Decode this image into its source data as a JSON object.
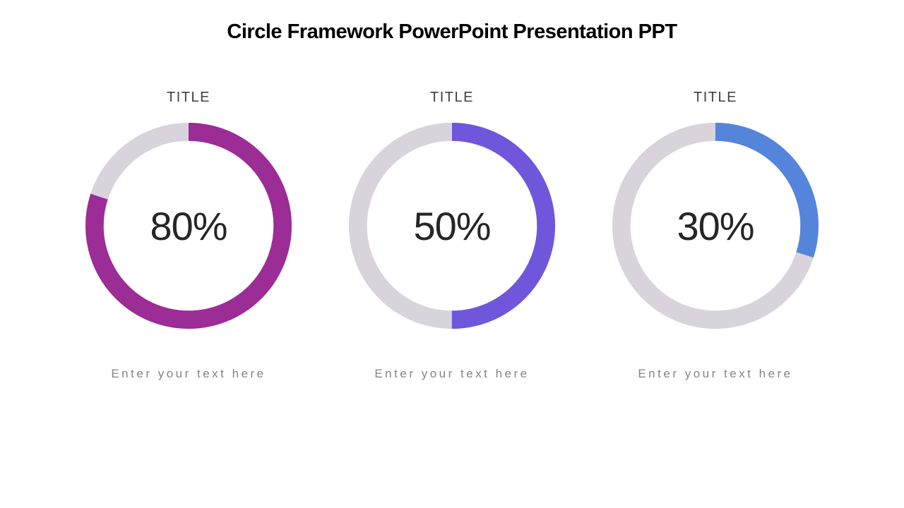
{
  "slide": {
    "title": "Circle Framework PowerPoint Presentation PPT"
  },
  "colors": {
    "track": "#D9D3DC",
    "heading": "#000000",
    "item_title": "#404040",
    "percent_text": "#262626",
    "caption_text": "#848484"
  },
  "items": [
    {
      "title": "TITLE",
      "percent": 80,
      "percent_label": "80%",
      "caption": "Enter your text here",
      "color": "#9C2C96"
    },
    {
      "title": "TITLE",
      "percent": 50,
      "percent_label": "50%",
      "caption": "Enter your text here",
      "color": "#7056DB"
    },
    {
      "title": "TITLE",
      "percent": 30,
      "percent_label": "30%",
      "caption": "Enter your text here",
      "color": "#5585DA"
    }
  ],
  "chart_data": [
    {
      "type": "pie",
      "subtype": "donut_progress",
      "title": "TITLE",
      "labels": [
        "filled",
        "remainder"
      ],
      "values": [
        80,
        20
      ],
      "colors": [
        "#9C2C96",
        "#D9D3DC"
      ],
      "center_label": "80%",
      "start_angle_deg": 0,
      "direction": "clockwise",
      "annotations": [
        "Enter your text here"
      ]
    },
    {
      "type": "pie",
      "subtype": "donut_progress",
      "title": "TITLE",
      "labels": [
        "filled",
        "remainder"
      ],
      "values": [
        50,
        50
      ],
      "colors": [
        "#7056DB",
        "#D9D3DC"
      ],
      "center_label": "50%",
      "start_angle_deg": 0,
      "direction": "clockwise",
      "annotations": [
        "Enter your text here"
      ]
    },
    {
      "type": "pie",
      "subtype": "donut_progress",
      "title": "TITLE",
      "labels": [
        "filled",
        "remainder"
      ],
      "values": [
        30,
        70
      ],
      "colors": [
        "#5585DA",
        "#D9D3DC"
      ],
      "center_label": "30%",
      "start_angle_deg": 0,
      "direction": "clockwise",
      "annotations": [
        "Enter your text here"
      ]
    }
  ]
}
